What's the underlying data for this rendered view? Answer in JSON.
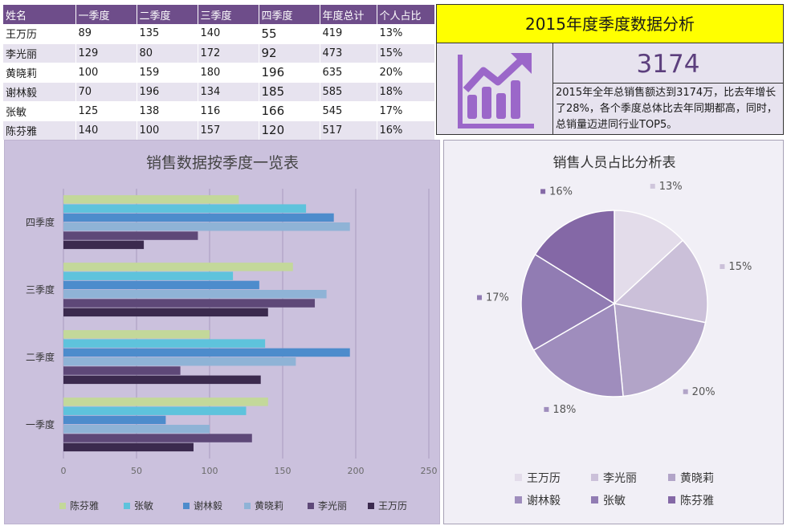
{
  "table": {
    "headers": [
      "姓名",
      "一季度",
      "二季度",
      "三季度",
      "四季度",
      "年度总计",
      "个人占比"
    ],
    "rows": [
      [
        "王万历",
        "89",
        "135",
        "140",
        "55",
        "419",
        "13%"
      ],
      [
        "李光丽",
        "129",
        "80",
        "172",
        "92",
        "473",
        "15%"
      ],
      [
        "黄晓莉",
        "100",
        "159",
        "180",
        "196",
        "635",
        "20%"
      ],
      [
        "谢林毅",
        "70",
        "196",
        "134",
        "185",
        "585",
        "18%"
      ],
      [
        "张敏",
        "125",
        "138",
        "116",
        "166",
        "545",
        "17%"
      ],
      [
        "陈芬雅",
        "140",
        "100",
        "157",
        "120",
        "517",
        "16%"
      ]
    ]
  },
  "summary": {
    "title": "2015年度季度数据分析",
    "total": "3174",
    "description": "2015年全年总销售额达到3174万，比去年增长了28%，各个季度总体比去年同期都高，同时，总销量迈进同行业TOP5。",
    "icon": "growth-chart-icon",
    "icon_color": "#9b67c9"
  },
  "chart_data": [
    {
      "type": "bar",
      "orientation": "horizontal",
      "title": "销售数据按季度一览表",
      "categories": [
        "一季度",
        "二季度",
        "三季度",
        "四季度"
      ],
      "series": [
        {
          "name": "王万历",
          "values": [
            89,
            135,
            140,
            55
          ],
          "color": "#3b2a4e"
        },
        {
          "name": "李光丽",
          "values": [
            129,
            80,
            172,
            92
          ],
          "color": "#5e4878"
        },
        {
          "name": "黄晓莉",
          "values": [
            100,
            159,
            180,
            196
          ],
          "color": "#8fb3d6"
        },
        {
          "name": "谢林毅",
          "values": [
            70,
            196,
            134,
            185
          ],
          "color": "#4d8ccc"
        },
        {
          "name": "张敏",
          "values": [
            125,
            138,
            116,
            166
          ],
          "color": "#5ec3dc"
        },
        {
          "name": "陈芬雅",
          "values": [
            140,
            100,
            157,
            120
          ],
          "color": "#c3d89a"
        }
      ],
      "xlim": [
        0,
        250
      ],
      "xticks": [
        "0",
        "50",
        "100",
        "150",
        "200",
        "250"
      ],
      "grid": true,
      "legend": "bottom",
      "legend_order": [
        "陈芬雅",
        "张敏",
        "谢林毅",
        "黄晓莉",
        "李光丽",
        "王万历"
      ]
    },
    {
      "type": "pie",
      "title": "销售人员占比分析表",
      "slices": [
        {
          "name": "王万历",
          "value": 13,
          "label": "13%",
          "color": "#e3dcea"
        },
        {
          "name": "李光丽",
          "value": 15,
          "label": "15%",
          "color": "#cbc0d9"
        },
        {
          "name": "黄晓莉",
          "value": 20,
          "label": "20%",
          "color": "#b2a4c8"
        },
        {
          "name": "谢林毅",
          "value": 18,
          "label": "18%",
          "color": "#9f8dbd"
        },
        {
          "name": "张敏",
          "value": 17,
          "label": "17%",
          "color": "#917cb3"
        },
        {
          "name": "陈芬雅",
          "value": 16,
          "label": "16%",
          "color": "#8468a6"
        }
      ],
      "legend": "bottom"
    }
  ]
}
